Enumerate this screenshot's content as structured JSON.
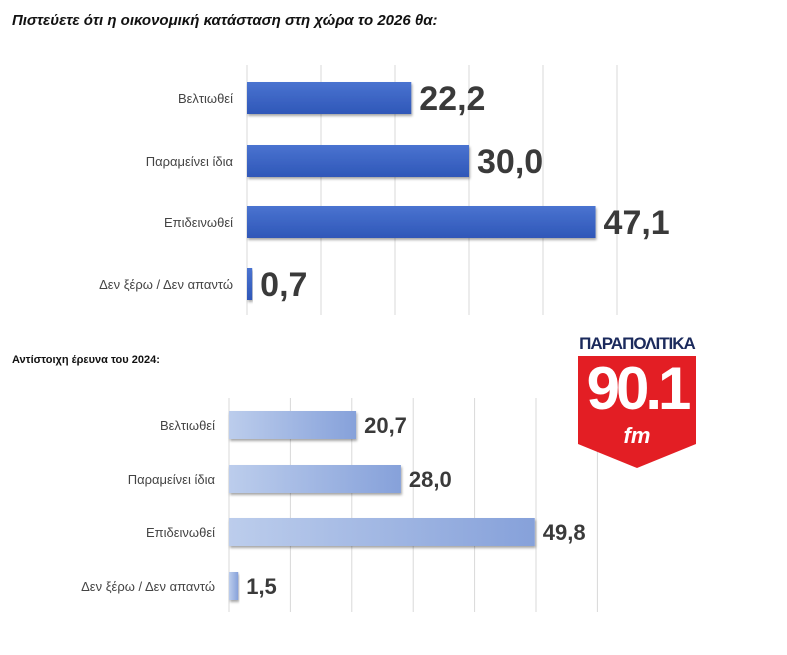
{
  "chart_data": [
    {
      "type": "bar",
      "orientation": "horizontal",
      "title": "Πιστεύετε ότι η οικονομική κατάσταση στη χώρα το 2026 θα:",
      "categories": [
        "Βελτιωθεί",
        "Παραμείνει ίδια",
        "Επιδεινωθεί",
        "Δεν ξέρω / Δεν απαντώ"
      ],
      "values": [
        22.2,
        30.0,
        47.1,
        0.7
      ],
      "labels": [
        "22,2",
        "30,0",
        "47,1",
        "0,7"
      ],
      "xlim": [
        0,
        50
      ],
      "grid": true,
      "color": "#3a63c4"
    },
    {
      "type": "bar",
      "orientation": "horizontal",
      "title": "Αντίστοιχη έρευνα του 2024:",
      "categories": [
        "Βελτιωθεί",
        "Παραμείνει ίδια",
        "Επιδεινωθεί",
        "Δεν ξέρω / Δεν απαντώ"
      ],
      "values": [
        20.7,
        28.0,
        49.8,
        1.5
      ],
      "labels": [
        "20,7",
        "28,0",
        "49,8",
        "1,5"
      ],
      "xlim": [
        0,
        60
      ],
      "grid": true,
      "color": "#8ea8dd"
    }
  ],
  "logo": {
    "top": "ΠΑΡΑΠΟΛΙΤΙΚΑ",
    "number": "90.1",
    "suffix": "fm",
    "color": "#e31e24"
  }
}
